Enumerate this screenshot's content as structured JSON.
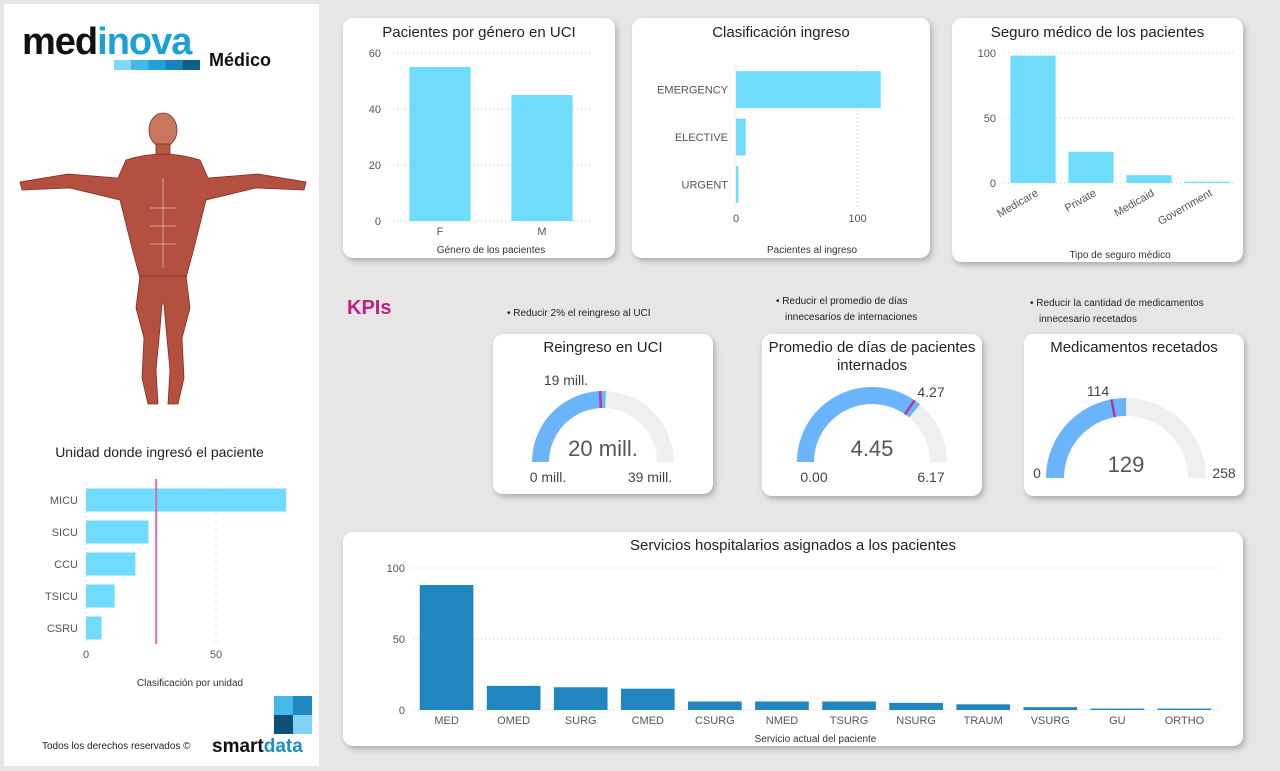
{
  "brand": {
    "logo_part1": "med",
    "logo_part2": "i",
    "logo_part3": "nova",
    "subtitle": "Médico",
    "footer_text": "Todos los derechos reservados ©",
    "smart_logo1": "smart",
    "smart_logo2": "data"
  },
  "kpis_label": "KPIs",
  "bullets": {
    "b1": "• Reducir 2% el reingreso al UCI",
    "b2_l1": "• Reducir el promedio de días",
    "b2_l2": "innecesarios de internaciones",
    "b3_l1": "• Reducir la cantidad de medicamentos",
    "b3_l2": "innecesario recetados"
  },
  "colors": {
    "light_bar": "#6fdcfc",
    "dark_bar": "#1f86bf",
    "gauge": "#6ab4fb",
    "gauge_bg": "#efefef",
    "target": "#b2389a",
    "kpi": "#c0207e",
    "ref_line": "#d86bb5"
  },
  "chart_data": [
    {
      "id": "unidad",
      "type": "bar",
      "orientation": "horizontal",
      "title": "Unidad donde ingresó el paciente",
      "xlabel": "Clasificación por unidad",
      "categories": [
        "MICU",
        "SICU",
        "CCU",
        "TSICU",
        "CSRU"
      ],
      "values": [
        77,
        24,
        19,
        11,
        6
      ],
      "xlim": [
        0,
        80
      ],
      "xticks": [
        "0",
        "50"
      ],
      "reference_line": 27
    },
    {
      "id": "genero",
      "type": "bar",
      "title": "Pacientes por género en UCI",
      "xlabel": "Género de los pacientes",
      "categories": [
        "F",
        "M"
      ],
      "values": [
        55,
        45
      ],
      "ylim": [
        0,
        60
      ],
      "yticks": [
        "0",
        "20",
        "40",
        "60"
      ]
    },
    {
      "id": "ingreso",
      "type": "bar",
      "orientation": "horizontal",
      "title": "Clasificación ingreso",
      "xlabel": "Pacientes al ingreso",
      "categories": [
        "EMERGENCY",
        "ELECTIVE",
        "URGENT"
      ],
      "values": [
        119,
        8,
        2
      ],
      "xlim": [
        0,
        125
      ],
      "xticks": [
        "0",
        "100"
      ]
    },
    {
      "id": "seguro",
      "type": "bar",
      "title": "Seguro médico de los pacientes",
      "xlabel": "Tipo de seguro médico",
      "categories": [
        "Medicare",
        "Private",
        "Medicaid",
        "Government"
      ],
      "values": [
        98,
        24,
        6,
        1
      ],
      "ylim": [
        0,
        100
      ],
      "yticks": [
        "0",
        "50",
        "100"
      ]
    },
    {
      "id": "reingreso",
      "type": "gauge",
      "title": "Reingreso en UCI",
      "value": 20,
      "min": 0,
      "max": 39,
      "target": 19,
      "value_label": "20 mill.",
      "min_label": "0 mill.",
      "max_label": "39 mill.",
      "target_label": "19 mill."
    },
    {
      "id": "promedio",
      "type": "gauge",
      "title_l1": "Promedio de días de pacientes",
      "title_l2": "internados",
      "value": 4.45,
      "min": 0,
      "max": 6.17,
      "target": 4.27,
      "value_label": "4.45",
      "min_label": "0.00",
      "max_label": "6.17",
      "target_label": "4.27"
    },
    {
      "id": "medicamentos",
      "type": "gauge",
      "title": "Medicamentos recetados",
      "value": 129,
      "min": 0,
      "max": 258,
      "target": 114,
      "value_label": "129",
      "min_label": "0",
      "max_label": "258",
      "target_label": "114"
    },
    {
      "id": "servicios",
      "type": "bar",
      "title": "Servicios hospitalarios asignados a los pacientes",
      "xlabel": "Servicio actual del paciente",
      "categories": [
        "MED",
        "OMED",
        "SURG",
        "CMED",
        "CSURG",
        "NMED",
        "TSURG",
        "NSURG",
        "TRAUM",
        "VSURG",
        "GU",
        "ORTHO"
      ],
      "values": [
        88,
        17,
        16,
        15,
        6,
        6,
        6,
        5,
        4,
        2,
        1,
        1
      ],
      "ylim": [
        0,
        100
      ],
      "yticks": [
        "0",
        "50",
        "100"
      ]
    }
  ]
}
